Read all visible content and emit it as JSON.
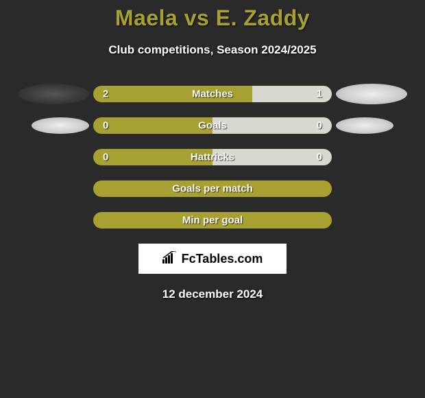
{
  "title": "Maela vs E. Zaddy",
  "subtitle": "Club competitions, Season 2024/2025",
  "date": "12 december 2024",
  "logo_text": "FcTables.com",
  "colors": {
    "background": "#2a2a2a",
    "accent": "#a8a030",
    "bar_right": "#d8d8d0",
    "text": "#ffffff"
  },
  "stats": [
    {
      "label": "Matches",
      "left_value": "2",
      "right_value": "1",
      "left_pct": 66.7,
      "right_pct": 33.3,
      "show_left_placeholder": true,
      "placeholder_variant": "dark",
      "show_right_placeholder": true
    },
    {
      "label": "Goals",
      "left_value": "0",
      "right_value": "0",
      "left_pct": 50,
      "right_pct": 50,
      "show_left_placeholder": true,
      "placeholder_variant": "light",
      "show_right_placeholder": true
    },
    {
      "label": "Hattricks",
      "left_value": "0",
      "right_value": "0",
      "left_pct": 50,
      "right_pct": 50,
      "show_left_placeholder": false,
      "show_right_placeholder": false
    },
    {
      "label": "Goals per match",
      "left_value": "",
      "right_value": "",
      "left_pct": 100,
      "right_pct": 0,
      "show_left_placeholder": false,
      "show_right_placeholder": false
    },
    {
      "label": "Min per goal",
      "left_value": "",
      "right_value": "",
      "left_pct": 100,
      "right_pct": 0,
      "show_left_placeholder": false,
      "show_right_placeholder": false
    }
  ]
}
